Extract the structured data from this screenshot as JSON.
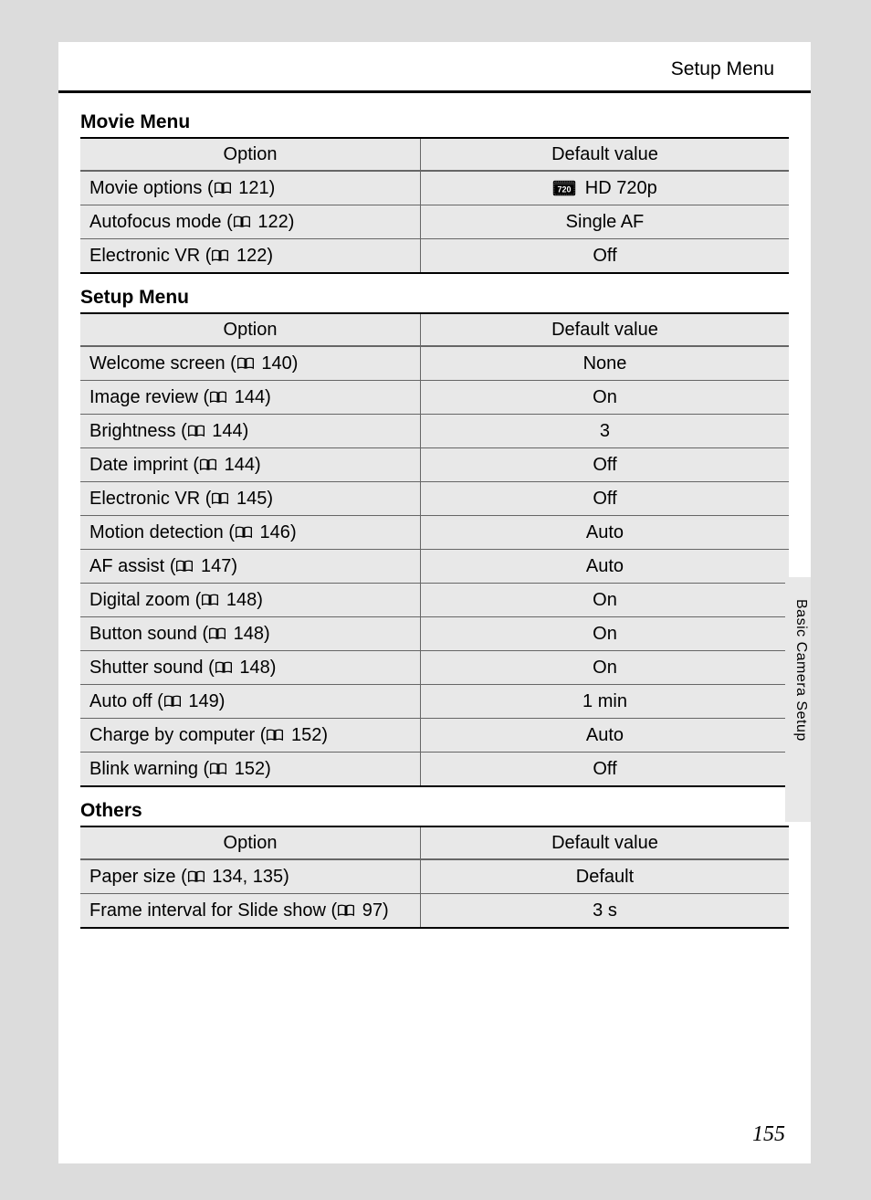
{
  "header": {
    "title": "Setup Menu"
  },
  "side_label": "Basic Camera Setup",
  "page_number": "155",
  "columns": {
    "option": "Option",
    "default": "Default value"
  },
  "sections": [
    {
      "title": "Movie Menu",
      "rows": [
        {
          "option": "Movie options",
          "ref": "121",
          "value": "HD 720p",
          "value_icon": "hd"
        },
        {
          "option": "Autofocus mode",
          "ref": "122",
          "value": "Single AF"
        },
        {
          "option": "Electronic VR",
          "ref": "122",
          "value": "Off"
        }
      ]
    },
    {
      "title": "Setup Menu",
      "rows": [
        {
          "option": "Welcome screen",
          "ref": "140",
          "value": "None"
        },
        {
          "option": "Image review",
          "ref": "144",
          "value": "On"
        },
        {
          "option": "Brightness",
          "ref": "144",
          "value": "3"
        },
        {
          "option": "Date imprint",
          "ref": "144",
          "value": "Off"
        },
        {
          "option": "Electronic VR",
          "ref": "145",
          "value": "Off"
        },
        {
          "option": "Motion detection",
          "ref": "146",
          "value": "Auto"
        },
        {
          "option": "AF assist",
          "ref": "147",
          "value": "Auto"
        },
        {
          "option": "Digital zoom",
          "ref": "148",
          "value": "On"
        },
        {
          "option": "Button sound",
          "ref": "148",
          "value": "On"
        },
        {
          "option": "Shutter sound",
          "ref": "148",
          "value": "On"
        },
        {
          "option": "Auto off",
          "ref": "149",
          "value": "1 min"
        },
        {
          "option": "Charge by computer",
          "ref": "152",
          "value": "Auto"
        },
        {
          "option": "Blink warning",
          "ref": "152",
          "value": "Off"
        }
      ]
    },
    {
      "title": "Others",
      "rows": [
        {
          "option": "Paper size",
          "ref": "134, 135",
          "value": "Default"
        },
        {
          "option": "Frame interval for Slide show",
          "ref": "97",
          "value": "3 s"
        }
      ]
    }
  ],
  "styles": {
    "page_bg": "#ffffff",
    "outer_bg": "#dcdcdc",
    "cell_bg": "#e8e8e8",
    "rule_heavy": "#000000",
    "rule_light": "#666666",
    "font_size_body": 20,
    "font_size_title": 21
  }
}
